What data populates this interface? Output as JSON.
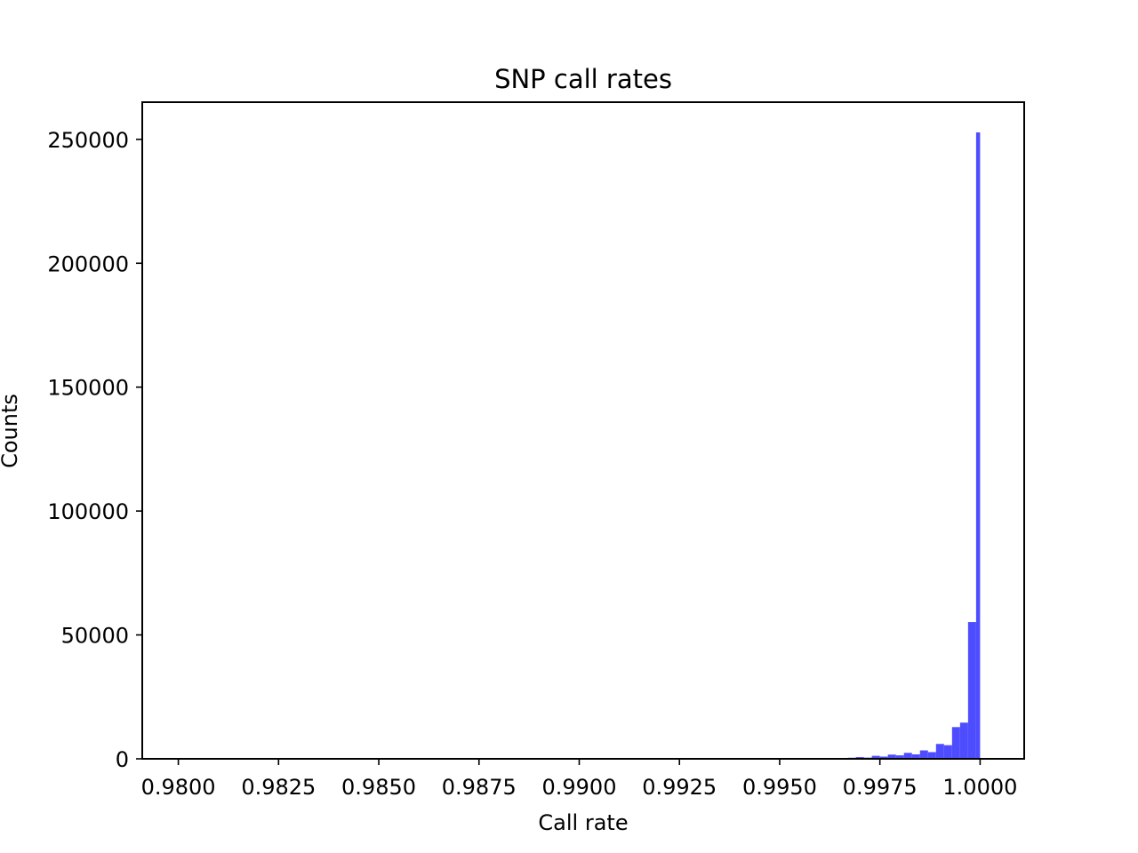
{
  "chart_data": {
    "type": "bar",
    "title": "SNP call rates",
    "xlabel": "Call rate",
    "ylabel": "Counts",
    "xlim": [
      0.9791,
      1.0011
    ],
    "ylim": [
      0,
      265000
    ],
    "x_ticks": [
      0.98,
      0.9825,
      0.985,
      0.9875,
      0.99,
      0.9925,
      0.995,
      0.9975,
      1.0
    ],
    "x_tick_labels": [
      "0.9800",
      "0.9825",
      "0.9850",
      "0.9875",
      "0.9900",
      "0.9925",
      "0.9950",
      "0.9975",
      "1.0000"
    ],
    "y_ticks": [
      0,
      50000,
      100000,
      150000,
      200000,
      250000
    ],
    "y_tick_labels": [
      "0",
      "50000",
      "100000",
      "150000",
      "200000",
      "250000"
    ],
    "bin_width": 0.0002,
    "bins": [
      {
        "start": 0.9963,
        "end": 0.9965,
        "count": 300
      },
      {
        "start": 0.9965,
        "end": 0.9967,
        "count": 250
      },
      {
        "start": 0.9967,
        "end": 0.9969,
        "count": 450
      },
      {
        "start": 0.9969,
        "end": 0.9971,
        "count": 700
      },
      {
        "start": 0.9971,
        "end": 0.9973,
        "count": 500
      },
      {
        "start": 0.9973,
        "end": 0.9975,
        "count": 1200
      },
      {
        "start": 0.9975,
        "end": 0.9977,
        "count": 900
      },
      {
        "start": 0.9977,
        "end": 0.9979,
        "count": 1700
      },
      {
        "start": 0.9979,
        "end": 0.9981,
        "count": 1400
      },
      {
        "start": 0.9981,
        "end": 0.9983,
        "count": 2400
      },
      {
        "start": 0.9983,
        "end": 0.9985,
        "count": 1800
      },
      {
        "start": 0.9985,
        "end": 0.9987,
        "count": 3400
      },
      {
        "start": 0.9987,
        "end": 0.9989,
        "count": 2700
      },
      {
        "start": 0.9989,
        "end": 0.9991,
        "count": 6000
      },
      {
        "start": 0.9991,
        "end": 0.9993,
        "count": 5500
      },
      {
        "start": 0.9993,
        "end": 0.9995,
        "count": 12800
      },
      {
        "start": 0.9995,
        "end": 0.9997,
        "count": 14600
      },
      {
        "start": 0.9997,
        "end": 0.9999,
        "count": 55200
      },
      {
        "start": 0.9999,
        "end": 1.0,
        "count": 252800
      }
    ],
    "bar_color": "#4d4dff",
    "grid": false,
    "legend": "none"
  }
}
